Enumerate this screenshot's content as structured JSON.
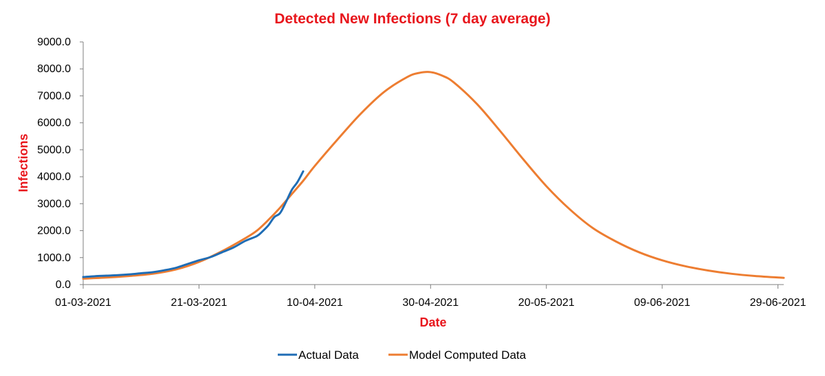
{
  "colors": {
    "title": "#e8161c",
    "axis_title": "#e8161c",
    "actual": "#1f6db5",
    "model": "#ed7d31",
    "axis": "#7f7f7f",
    "tick_text": "#000000"
  },
  "chart_data": {
    "type": "line",
    "title": "Detected New Infections (7 day average)",
    "xlabel": "Date",
    "ylabel": "Infections",
    "x_start_date": "01-03-2021",
    "x_end_day": 121,
    "x_tick_days": [
      0,
      20,
      40,
      60,
      80,
      100,
      120
    ],
    "x_tick_labels": [
      "01-03-2021",
      "21-03-2021",
      "10-04-2021",
      "30-04-2021",
      "20-05-2021",
      "09-06-2021",
      "29-06-2021"
    ],
    "ylim": [
      0,
      9000
    ],
    "y_ticks": [
      0,
      1000,
      2000,
      3000,
      4000,
      5000,
      6000,
      7000,
      8000,
      9000
    ],
    "y_tick_labels": [
      "0.0",
      "1000.0",
      "2000.0",
      "3000.0",
      "4000.0",
      "5000.0",
      "6000.0",
      "7000.0",
      "8000.0",
      "9000.0"
    ],
    "grid": false,
    "legend_position": "bottom",
    "series": [
      {
        "name": "Actual Data",
        "x": [
          0,
          2,
          4,
          6,
          8,
          10,
          12,
          14,
          16,
          18,
          20,
          22,
          24,
          26,
          28,
          30,
          31,
          32,
          33,
          34,
          35,
          36,
          37,
          38
        ],
        "values": [
          280,
          310,
          330,
          350,
          380,
          420,
          460,
          530,
          620,
          760,
          900,
          1020,
          1200,
          1380,
          1620,
          1800,
          1980,
          2200,
          2500,
          2650,
          3050,
          3500,
          3800,
          4200
        ]
      },
      {
        "name": "Model Computed Data",
        "x": [
          0,
          4,
          8,
          12,
          16,
          20,
          24,
          28,
          30,
          32,
          34,
          36,
          38,
          40,
          44,
          48,
          52,
          56,
          58,
          60,
          62,
          64,
          68,
          72,
          76,
          80,
          84,
          88,
          92,
          96,
          100,
          104,
          108,
          112,
          116,
          121
        ],
        "values": [
          220,
          260,
          320,
          400,
          560,
          840,
          1240,
          1720,
          2000,
          2400,
          2850,
          3350,
          3850,
          4400,
          5400,
          6350,
          7150,
          7700,
          7850,
          7880,
          7750,
          7500,
          6700,
          5700,
          4650,
          3650,
          2800,
          2100,
          1600,
          1200,
          900,
          680,
          520,
          400,
          320,
          250
        ]
      }
    ]
  }
}
